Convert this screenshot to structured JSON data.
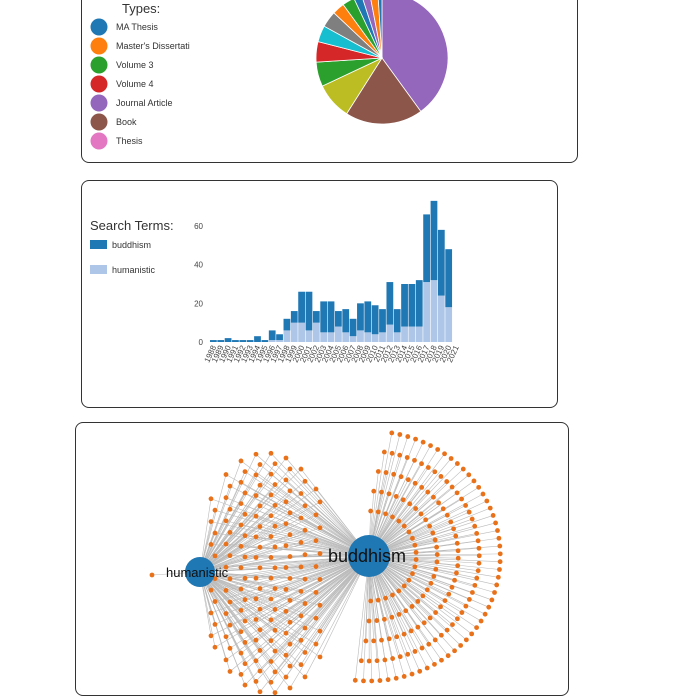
{
  "pie_legend": {
    "title": "Types:",
    "items": [
      {
        "label": "MA Thesis",
        "color": "#1f77b4"
      },
      {
        "label": "Master's Dissertati",
        "color": "#ff7f0e"
      },
      {
        "label": "Volume 3",
        "color": "#2ca02c"
      },
      {
        "label": "Volume 4",
        "color": "#d62728"
      },
      {
        "label": "Journal Article",
        "color": "#9467bd"
      },
      {
        "label": "Book",
        "color": "#8c564b"
      },
      {
        "label": "Thesis",
        "color": "#e377c2"
      }
    ]
  },
  "bar_legend": {
    "title": "Search Terms:",
    "items": [
      {
        "label": "buddhism",
        "color": "#1f77b4"
      },
      {
        "label": "humanistic",
        "color": "#aec7e8"
      }
    ]
  },
  "network": {
    "nodes": [
      {
        "label": "buddhism",
        "color": "#1f77b4"
      },
      {
        "label": "humanistic",
        "color": "#1f77b4"
      }
    ],
    "leaf_color": "#e8711a",
    "link_color": "#bbbbbb"
  },
  "chart_data": [
    {
      "type": "pie",
      "slices": [
        {
          "label": "Journal Article",
          "value": 40,
          "color": "#9467bd"
        },
        {
          "label": "Book",
          "value": 19,
          "color": "#8c564b"
        },
        {
          "value": 9,
          "color": "#bcbd22"
        },
        {
          "value": 6,
          "color": "#2ca02c"
        },
        {
          "value": 5,
          "color": "#d62728"
        },
        {
          "value": 4,
          "color": "#17becf"
        },
        {
          "value": 4,
          "color": "#7f7f7f"
        },
        {
          "value": 3,
          "color": "#ff7f0e"
        },
        {
          "value": 3,
          "color": "#2ca02c"
        },
        {
          "value": 2,
          "color": "#1f77b4"
        },
        {
          "value": 2,
          "color": "#9467bd"
        },
        {
          "value": 2,
          "color": "#ff7f0e"
        },
        {
          "value": 1,
          "color": "#1f77b4"
        }
      ]
    },
    {
      "type": "bar",
      "stacked": true,
      "categories": [
        "1988",
        "1989",
        "1990",
        "1991",
        "1992",
        "1993",
        "1994",
        "1995",
        "1996",
        "1997",
        "1998",
        "1999",
        "2000",
        "2001",
        "2002",
        "2003",
        "2004",
        "2005",
        "2006",
        "2007",
        "2008",
        "2009",
        "2010",
        "2011",
        "2012",
        "2013",
        "2014",
        "2015",
        "2016",
        "2017",
        "2018",
        "2019",
        "2020",
        "2021"
      ],
      "series": [
        {
          "name": "humanistic",
          "color": "#aec7e8",
          "values": [
            0,
            0,
            0,
            0,
            0,
            0,
            0,
            0,
            1,
            1,
            6,
            10,
            10,
            6,
            10,
            5,
            5,
            8,
            5,
            3,
            6,
            5,
            4,
            5,
            9,
            5,
            8,
            8,
            8,
            31,
            32,
            24,
            18,
            0
          ]
        },
        {
          "name": "buddhism",
          "color": "#1f77b4",
          "values": [
            1,
            1,
            2,
            1,
            1,
            1,
            3,
            1,
            5,
            3,
            6,
            6,
            16,
            20,
            6,
            16,
            16,
            8,
            12,
            9,
            14,
            16,
            15,
            12,
            22,
            12,
            22,
            22,
            24,
            35,
            41,
            34,
            30,
            0
          ]
        }
      ],
      "yticks": [
        0,
        20,
        40,
        60
      ],
      "ylim": [
        0,
        75
      ]
    }
  ]
}
